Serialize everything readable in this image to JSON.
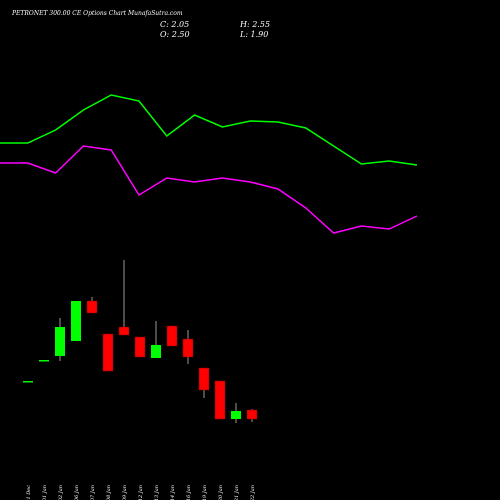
{
  "chart_data": [
    {
      "type": "candlestick",
      "title": "PETRONET 300.00 CE Options Chart MunafaSutra.com",
      "header": [
        "C: 2.05",
        "H: 2.55",
        "O: 2.50",
        "L: 1.90"
      ],
      "categories": [
        "31 Dec",
        "01 Jan",
        "02 Jan",
        "06 Jan",
        "07 Jan",
        "08 Jan",
        "09 Jan",
        "12 Jan",
        "13 Jan",
        "14 Jan",
        "16 Jan",
        "19 Jan",
        "20 Jan",
        "21 Jan",
        "22 Jan"
      ],
      "open": [
        3.95,
        5.0,
        5.2,
        5.95,
        7.95,
        6.3,
        6.65,
        6.15,
        5.1,
        6.7,
        6.05,
        4.6,
        3.95,
        2.05,
        2.5
      ],
      "high": [
        3.95,
        5.0,
        7.1,
        7.95,
        8.15,
        6.3,
        10.0,
        6.15,
        6.95,
        6.7,
        6.5,
        4.6,
        3.95,
        2.85,
        2.55
      ],
      "low": [
        3.95,
        5.0,
        4.95,
        5.95,
        7.35,
        4.45,
        6.25,
        5.15,
        5.1,
        5.7,
        4.8,
        3.1,
        2.05,
        1.85,
        1.9
      ],
      "close": [
        3.95,
        5.0,
        6.65,
        7.95,
        7.35,
        4.45,
        6.25,
        5.15,
        5.75,
        5.7,
        5.15,
        3.5,
        2.05,
        2.45,
        2.05
      ],
      "up_color": "#00ff00",
      "down_color": "#ff0000",
      "ylim": [
        0,
        12
      ]
    },
    {
      "type": "line",
      "x": [
        0,
        1,
        2,
        3,
        4,
        5,
        6,
        7,
        8,
        9,
        10,
        11,
        12,
        13,
        14,
        15
      ],
      "xlim": [
        0,
        15
      ],
      "ylim": [
        0,
        200
      ],
      "series": [
        {
          "color": "#00ff00",
          "values": [
            107,
            107,
            120,
            140,
            155,
            149,
            114,
            135,
            123,
            129,
            128,
            122,
            104,
            86,
            89,
            85
          ]
        },
        {
          "color": "#ff00ff",
          "values": [
            87,
            87,
            77,
            104,
            100,
            55,
            72,
            68,
            72,
            68,
            61,
            42,
            17,
            24,
            21,
            34
          ]
        }
      ]
    }
  ]
}
